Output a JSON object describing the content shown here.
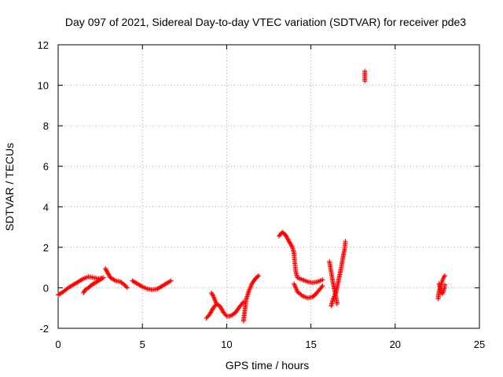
{
  "chart_data": {
    "type": "scatter",
    "title": "Day 097 of 2021, Sidereal Day-to-day VTEC variation (SDTVAR) for receiver pde3",
    "xlabel": "GPS time / hours",
    "ylabel": "SDTVAR / TECUs",
    "xlim": [
      0,
      25
    ],
    "ylim": [
      -2,
      12
    ],
    "xticks": [
      0,
      5,
      10,
      15,
      20,
      25
    ],
    "yticks": [
      -2,
      0,
      2,
      4,
      6,
      8,
      10,
      12
    ],
    "grid": true,
    "marker": "+",
    "series": [
      {
        "name": "SDTVAR",
        "color": "#ff0000",
        "segments": [
          [
            [
              0.0,
              -0.35
            ],
            [
              0.3,
              -0.2
            ],
            [
              0.6,
              0.0
            ],
            [
              0.9,
              0.15
            ],
            [
              1.2,
              0.3
            ],
            [
              1.5,
              0.45
            ],
            [
              1.8,
              0.55
            ],
            [
              2.1,
              0.5
            ],
            [
              2.4,
              0.45
            ],
            [
              2.7,
              0.5
            ]
          ],
          [
            [
              1.5,
              -0.25
            ],
            [
              1.6,
              -0.1
            ],
            [
              1.8,
              0.0
            ],
            [
              2.0,
              0.15
            ],
            [
              2.3,
              0.3
            ],
            [
              2.6,
              0.45
            ]
          ],
          [
            [
              2.8,
              0.95
            ],
            [
              2.9,
              0.8
            ],
            [
              3.1,
              0.5
            ],
            [
              3.4,
              0.35
            ],
            [
              3.7,
              0.3
            ],
            [
              4.0,
              0.1
            ],
            [
              4.1,
              0.0
            ]
          ],
          [
            [
              4.4,
              0.35
            ],
            [
              4.7,
              0.2
            ],
            [
              5.0,
              0.05
            ],
            [
              5.3,
              -0.05
            ],
            [
              5.6,
              -0.1
            ],
            [
              5.9,
              -0.05
            ],
            [
              6.2,
              0.1
            ],
            [
              6.5,
              0.25
            ],
            [
              6.7,
              0.35
            ]
          ],
          [
            [
              8.8,
              -1.5
            ],
            [
              9.0,
              -1.3
            ],
            [
              9.2,
              -1.0
            ],
            [
              9.4,
              -0.8
            ],
            [
              9.6,
              -0.9
            ],
            [
              9.8,
              -1.2
            ],
            [
              10.0,
              -1.4
            ],
            [
              10.2,
              -1.4
            ],
            [
              10.5,
              -1.25
            ],
            [
              10.8,
              -0.9
            ],
            [
              11.0,
              -0.7
            ]
          ],
          [
            [
              9.1,
              -0.25
            ],
            [
              9.2,
              -0.4
            ],
            [
              9.4,
              -0.8
            ]
          ],
          [
            [
              11.0,
              -1.65
            ],
            [
              11.05,
              -1.3
            ],
            [
              11.1,
              -0.95
            ],
            [
              11.15,
              -0.6
            ],
            [
              11.3,
              -0.2
            ],
            [
              11.5,
              0.2
            ],
            [
              11.7,
              0.45
            ],
            [
              11.9,
              0.6
            ]
          ],
          [
            [
              13.1,
              2.55
            ],
            [
              13.3,
              2.75
            ],
            [
              13.5,
              2.6
            ],
            [
              13.7,
              2.3
            ],
            [
              13.9,
              2.0
            ],
            [
              14.0,
              1.7
            ]
          ],
          [
            [
              14.0,
              1.65
            ],
            [
              14.05,
              1.2
            ],
            [
              14.1,
              0.8
            ],
            [
              14.2,
              0.5
            ],
            [
              14.5,
              0.4
            ],
            [
              14.8,
              0.3
            ],
            [
              15.1,
              0.25
            ],
            [
              15.4,
              0.3
            ],
            [
              15.7,
              0.4
            ]
          ],
          [
            [
              14.0,
              0.2
            ],
            [
              14.2,
              -0.2
            ],
            [
              14.5,
              -0.4
            ],
            [
              14.8,
              -0.5
            ],
            [
              15.1,
              -0.45
            ],
            [
              15.3,
              -0.3
            ],
            [
              15.5,
              -0.1
            ],
            [
              15.7,
              0.1
            ]
          ],
          [
            [
              16.1,
              1.3
            ],
            [
              16.2,
              0.8
            ],
            [
              16.3,
              0.3
            ],
            [
              16.4,
              -0.1
            ],
            [
              16.5,
              -0.5
            ],
            [
              16.55,
              -0.8
            ]
          ],
          [
            [
              16.2,
              -0.9
            ],
            [
              16.3,
              -0.6
            ],
            [
              16.5,
              -0.2
            ],
            [
              16.6,
              0.2
            ],
            [
              16.7,
              0.6
            ],
            [
              16.8,
              1.0
            ],
            [
              16.9,
              1.5
            ],
            [
              17.0,
              1.9
            ],
            [
              17.05,
              2.3
            ]
          ],
          [
            [
              18.2,
              10.7
            ],
            [
              18.2,
              10.45
            ],
            [
              18.2,
              10.2
            ]
          ],
          [
            [
              22.55,
              -0.55
            ],
            [
              22.6,
              -0.2
            ],
            [
              22.7,
              0.1
            ],
            [
              22.8,
              0.35
            ],
            [
              22.9,
              0.55
            ],
            [
              22.95,
              0.6
            ]
          ],
          [
            [
              22.6,
              0.2
            ],
            [
              22.7,
              -0.1
            ],
            [
              22.8,
              -0.3
            ],
            [
              22.9,
              -0.1
            ],
            [
              22.95,
              0.15
            ]
          ]
        ]
      }
    ]
  }
}
